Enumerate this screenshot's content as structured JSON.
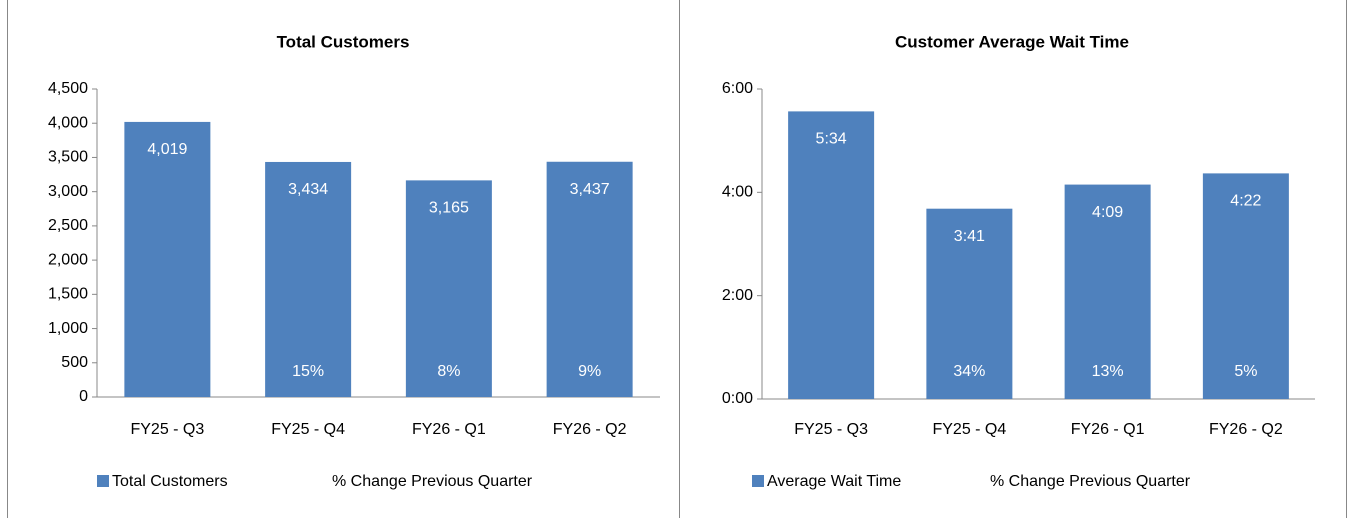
{
  "chart_data": [
    {
      "type": "bar",
      "title": "Total Customers",
      "categories": [
        "FY25 - Q3",
        "FY25 - Q4",
        "FY26 - Q1",
        "FY26 - Q2"
      ],
      "series": [
        {
          "name": "Total Customers",
          "color": "#4f81bd",
          "values": [
            4019,
            3434,
            3165,
            3437
          ],
          "value_labels": [
            "4,019",
            "3,434",
            "3,165",
            "3,437"
          ]
        },
        {
          "name": "% Change Previous Quarter",
          "values": [
            null,
            15,
            8,
            9
          ],
          "value_labels": [
            null,
            "15%",
            "8%",
            "9%"
          ]
        }
      ],
      "ylim": [
        0,
        4500
      ],
      "yticks": [
        0,
        500,
        {
          "value": 1000,
          "label": "1,000"
        },
        {
          "value": 1500,
          "label": "1,500"
        },
        {
          "value": 2000,
          "label": "2,000"
        },
        {
          "value": 2500,
          "label": "2,500"
        },
        {
          "value": 3000,
          "label": "3,000"
        },
        {
          "value": 3500,
          "label": "3,500"
        },
        {
          "value": 4000,
          "label": "4,000"
        },
        {
          "value": 4500,
          "label": "4,500"
        }
      ],
      "grid": false,
      "legend": "bottom"
    },
    {
      "type": "bar",
      "title": "Customer Average Wait Time",
      "categories": [
        "FY25 - Q3",
        "FY25 - Q4",
        "FY26 - Q1",
        "FY26 - Q2"
      ],
      "series": [
        {
          "name": "Average Wait Time",
          "color": "#4f81bd",
          "values": [
            334,
            221,
            249,
            262
          ],
          "value_labels": [
            "5:34",
            "3:41",
            "4:09",
            "4:22"
          ]
        },
        {
          "name": "% Change Previous Quarter",
          "values": [
            null,
            34,
            13,
            5
          ],
          "value_labels": [
            null,
            "34%",
            "13%",
            "5%"
          ]
        }
      ],
      "ylim": [
        0,
        360
      ],
      "yticks": [
        {
          "value": 0,
          "label": "0:00"
        },
        {
          "value": 120,
          "label": "2:00"
        },
        {
          "value": 240,
          "label": "4:00"
        },
        {
          "value": 360,
          "label": "6:00"
        }
      ],
      "grid": false,
      "legend": "bottom"
    }
  ]
}
